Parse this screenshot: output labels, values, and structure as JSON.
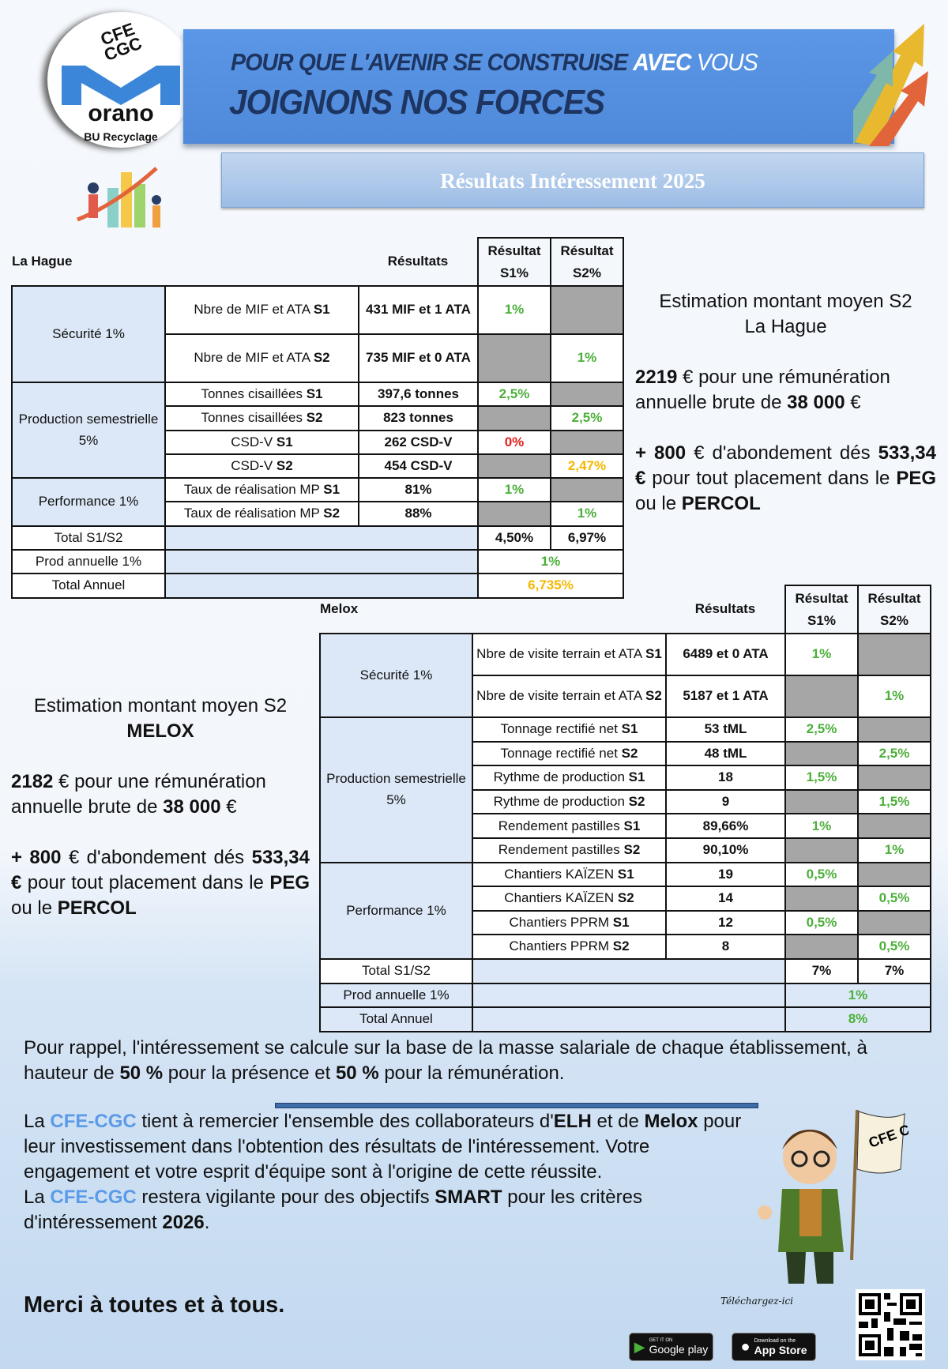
{
  "header": {
    "line1_a": "POUR QUE L'AVENIR SE CONSTRUISE",
    "line1_b": "AVEC",
    "line1_c": "VOUS",
    "line2": "JOIGNONS NOS FORCES",
    "logo": {
      "cfe": "CFE",
      "cgc": "CGC",
      "brand": "orano",
      "unit": "BU Recyclage"
    },
    "title": "Résultats Intéressement 2025"
  },
  "colors": {
    "green": "#4caf3a",
    "red": "#e0201c",
    "orange": "#f5b800",
    "gray": "#a6a6a6",
    "cell_blue": "#dce8f7",
    "cfe_blue": "#5b9be8"
  },
  "lahague": {
    "site": "La Hague",
    "col_results": "Résultats",
    "col_s1": "Résultat S1%",
    "col_s2": "Résultat S2%",
    "rows": [
      {
        "group": "Sécurité 1%",
        "span": 2,
        "label": "Nbre de MIF et ATA ",
        "sem": "S1",
        "value": "431 MIF et 1 ATA",
        "s1": "1%",
        "s1c": "green",
        "s2": "",
        "tall": true
      },
      {
        "label": "Nbre de MIF et ATA ",
        "sem": "S2",
        "value": "735 MIF et 0 ATA",
        "s1": "",
        "s2": "1%",
        "s2c": "green",
        "tall": true
      },
      {
        "group": "Production semestrielle 5%",
        "span": 4,
        "label": "Tonnes cisaillées ",
        "sem": "S1",
        "value": "397,6 tonnes",
        "s1": "2,5%",
        "s1c": "green",
        "s2": ""
      },
      {
        "label": "Tonnes cisaillées ",
        "sem": "S2",
        "value": "823 tonnes",
        "s1": "",
        "s2": "2,5%",
        "s2c": "green"
      },
      {
        "label": "CSD-V ",
        "sem": "S1",
        "value": "262 CSD-V",
        "s1": "0%",
        "s1c": "red",
        "s2": ""
      },
      {
        "label": "CSD-V ",
        "sem": "S2",
        "value": "454 CSD-V",
        "s1": "",
        "s2": "2,47%",
        "s2c": "orange"
      },
      {
        "group": "Performance 1%",
        "span": 2,
        "label": "Taux de réalisation MP ",
        "sem": "S1",
        "value": "81%",
        "s1": "1%",
        "s1c": "green",
        "s2": ""
      },
      {
        "label": "Taux de réalisation MP ",
        "sem": "S2",
        "value": "88%",
        "s1": "",
        "s2": "1%",
        "s2c": "green"
      }
    ],
    "totals": [
      {
        "label": "Total S1/S2",
        "s1": "4,50%",
        "s2": "6,97%"
      },
      {
        "label": "Prod annuelle 1%",
        "both": "1%",
        "c": "green"
      },
      {
        "label": "Total Annuel",
        "both": "6,735%",
        "c": "orange"
      }
    ]
  },
  "melox": {
    "site": "Melox",
    "col_results": "Résultats",
    "col_s1": "Résultat S1%",
    "col_s2": "Résultat S2%",
    "rows": [
      {
        "group": "Sécurité 1%",
        "span": 2,
        "label": "Nbre de visite terrain et ATA ",
        "sem": "S1",
        "value": "6489 et 0 ATA",
        "s1": "1%",
        "s1c": "green",
        "s2": "",
        "tall": true
      },
      {
        "label": "Nbre de visite terrain et ATA ",
        "sem": "S2",
        "value": "5187 et 1 ATA",
        "s1": "",
        "s2": "1%",
        "s2c": "green",
        "tall": true
      },
      {
        "group": "Production semestrielle 5%",
        "span": 6,
        "label": "Tonnage rectifié net ",
        "sem": "S1",
        "value": "53 tML",
        "s1": "2,5%",
        "s1c": "green",
        "s2": ""
      },
      {
        "label": "Tonnage rectifié net ",
        "sem": "S2",
        "value": "48 tML",
        "s1": "",
        "s2": "2,5%",
        "s2c": "green"
      },
      {
        "label": "Rythme de production ",
        "sem": "S1",
        "value": "18",
        "s1": "1,5%",
        "s1c": "green",
        "s2": ""
      },
      {
        "label": "Rythme de production ",
        "sem": "S2",
        "value": "9",
        "s1": "",
        "s2": "1,5%",
        "s2c": "green"
      },
      {
        "label": "Rendement pastilles ",
        "sem": "S1",
        "value": "89,66%",
        "s1": "1%",
        "s1c": "green",
        "s2": ""
      },
      {
        "label": "Rendement pastilles ",
        "sem": "S2",
        "value": "90,10%",
        "s1": "",
        "s2": "1%",
        "s2c": "green"
      },
      {
        "group": "Performance 1%",
        "span": 4,
        "label": "Chantiers KAÏZEN ",
        "sem": "S1",
        "value": "19",
        "s1": "0,5%",
        "s1c": "green",
        "s2": ""
      },
      {
        "label": "Chantiers KAÏZEN ",
        "sem": "S2",
        "value": "14",
        "s1": "",
        "s2": "0,5%",
        "s2c": "green"
      },
      {
        "label": "Chantiers PPRM ",
        "sem": "S1",
        "value": "12",
        "s1": "0,5%",
        "s1c": "green",
        "s2": ""
      },
      {
        "label": "Chantiers PPRM ",
        "sem": "S2",
        "value": "8",
        "s1": "",
        "s2": "0,5%",
        "s2c": "green"
      }
    ],
    "totals": [
      {
        "label": "Total S1/S2",
        "s1": "7%",
        "s2": "7%"
      },
      {
        "label": "Prod annuelle 1%",
        "both": "1%",
        "c": "green"
      },
      {
        "label": "Total Annuel",
        "both": "8%",
        "c": "green"
      }
    ]
  },
  "estimate_lahague": {
    "title": "Estimation montant moyen S2",
    "site": "La Hague",
    "amount": "2219",
    "t1": " € pour une rémunération annuelle brute de ",
    "salary": "38 000",
    "t2": " €",
    "plus": "+ 800",
    "t3": " € d'abondement dés ",
    "min": "533,34 €",
    "t4": " pour tout placement dans le ",
    "peg": "PEG",
    "t5": " ou le ",
    "percol": "PERCOL"
  },
  "estimate_melox": {
    "title": "Estimation montant moyen S2",
    "site": "MELOX",
    "amount": "2182",
    "t1": " € pour une rémunération annuelle brute de ",
    "salary": "38 000",
    "t2": " €",
    "plus": "+ 800",
    "t3": " € d'abondement dés ",
    "min": "533,34 €",
    "t4": " pour tout placement dans le ",
    "peg": "PEG",
    "t5": " ou le ",
    "percol": "PERCOL"
  },
  "reminder": {
    "t1": "Pour rappel, l'intéressement se calcule sur la base de la masse salariale de chaque établissement, à hauteur de ",
    "p1": "50 %",
    "t2": " pour la présence et ",
    "p2": "50 %",
    "t3": " pour la rémunération."
  },
  "thanks": {
    "a": "La ",
    "cfe": "CFE-CGC",
    "b": " tient à remercier l'ensemble des collaborateurs d'",
    "elh": "ELH",
    "c": " et de ",
    "melox": "Melox",
    "d": " pour leur investissement dans l'obtention des résultats de l'intéressement. Votre engagement et votre esprit d'équipe sont à l'origine de cette réussite.",
    "e": "La ",
    "cfe2": "CFE-CGC",
    "f": " restera vigilante pour des objectifs ",
    "smart": "SMART",
    "g": " pour les critères d'intéressement ",
    "year": "2026",
    "h": "."
  },
  "closing": "Merci à toutes et à tous.",
  "footer": {
    "download": "Téléchargez-ici",
    "google_small": "GET IT ON",
    "google": "Google play",
    "apple_small": "Download on the",
    "apple": "App Store",
    "flag": "CFE CGC"
  }
}
